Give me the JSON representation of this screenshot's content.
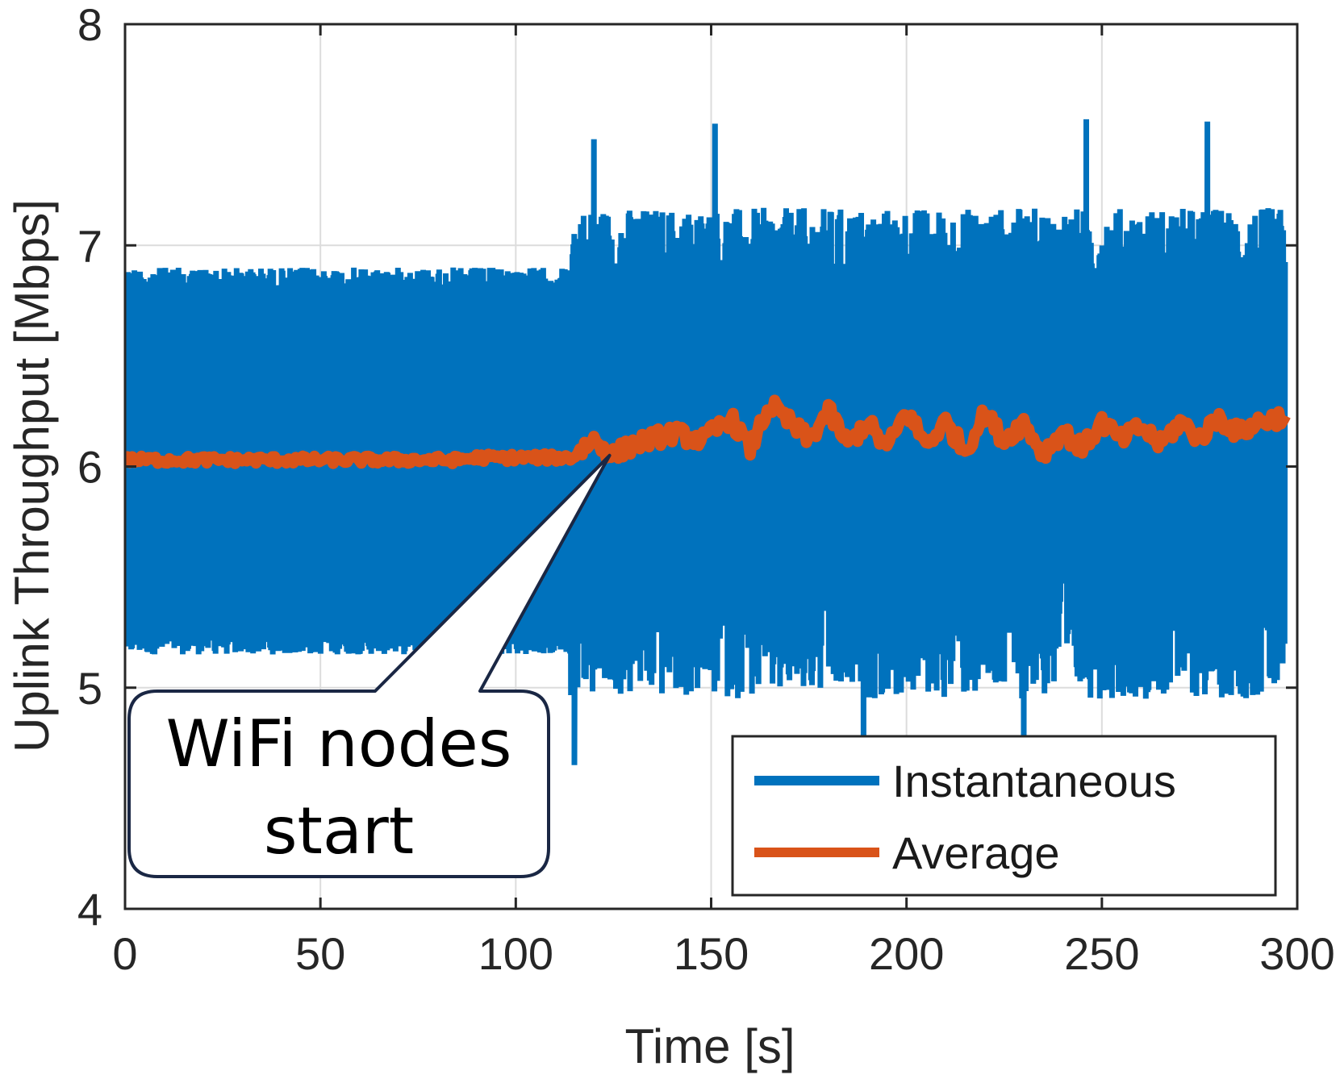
{
  "chart_data": {
    "type": "line",
    "title": "",
    "xlabel": "Time [s]",
    "ylabel": "Uplink Throughput [Mbps]",
    "xlim": [
      0,
      300
    ],
    "ylim": [
      4,
      8
    ],
    "xticks": [
      0,
      50,
      100,
      150,
      200,
      250,
      300
    ],
    "yticks": [
      4,
      5,
      6,
      7,
      8
    ],
    "xtick_labels": [
      "0",
      "50",
      "100",
      "150",
      "200",
      "250",
      "300"
    ],
    "ytick_labels": [
      "4",
      "5",
      "6",
      "7",
      "8"
    ],
    "grid": true,
    "legend_position": "bottom-right",
    "series": [
      {
        "name": "Instantaneous",
        "color": "#0072BD",
        "description_phases": [
          {
            "t_start": 0,
            "t_end": 114,
            "y_low": 5.15,
            "y_high": 6.9,
            "mean": 6.03
          },
          {
            "t_start": 114,
            "t_end": 297,
            "y_low": 4.65,
            "y_high": 7.57,
            "mean": 6.15
          }
        ],
        "notable_peaks": [
          [
            120,
            7.48
          ],
          [
            151,
            7.55
          ],
          [
            246,
            7.57
          ],
          [
            277,
            7.56
          ]
        ],
        "notable_dips": [
          [
            115,
            4.65
          ],
          [
            189,
            4.75
          ],
          [
            230,
            4.78
          ]
        ]
      },
      {
        "name": "Average",
        "color": "#D95319",
        "points": [
          [
            0,
            6.03
          ],
          [
            85,
            6.03
          ],
          [
            90,
            6.04
          ],
          [
            114,
            6.04
          ],
          [
            120,
            6.12
          ],
          [
            125,
            6.05
          ],
          [
            130,
            6.1
          ],
          [
            140,
            6.15
          ],
          [
            148,
            6.12
          ],
          [
            155,
            6.22
          ],
          [
            160,
            6.08
          ],
          [
            165,
            6.28
          ],
          [
            170,
            6.2
          ],
          [
            175,
            6.12
          ],
          [
            180,
            6.25
          ],
          [
            185,
            6.1
          ],
          [
            190,
            6.2
          ],
          [
            195,
            6.08
          ],
          [
            200,
            6.25
          ],
          [
            205,
            6.1
          ],
          [
            210,
            6.2
          ],
          [
            215,
            6.07
          ],
          [
            220,
            6.24
          ],
          [
            225,
            6.12
          ],
          [
            230,
            6.2
          ],
          [
            235,
            6.06
          ],
          [
            240,
            6.16
          ],
          [
            245,
            6.08
          ],
          [
            250,
            6.2
          ],
          [
            255,
            6.12
          ],
          [
            260,
            6.18
          ],
          [
            265,
            6.1
          ],
          [
            270,
            6.2
          ],
          [
            275,
            6.13
          ],
          [
            280,
            6.22
          ],
          [
            285,
            6.15
          ],
          [
            290,
            6.2
          ],
          [
            297,
            6.23
          ]
        ]
      }
    ],
    "legend": [
      "Instantaneous",
      "Average"
    ],
    "annotations": [
      {
        "text_line1": "WiFi nodes",
        "text_line2": "start",
        "points_to": [
          124,
          6.05
        ]
      }
    ]
  }
}
